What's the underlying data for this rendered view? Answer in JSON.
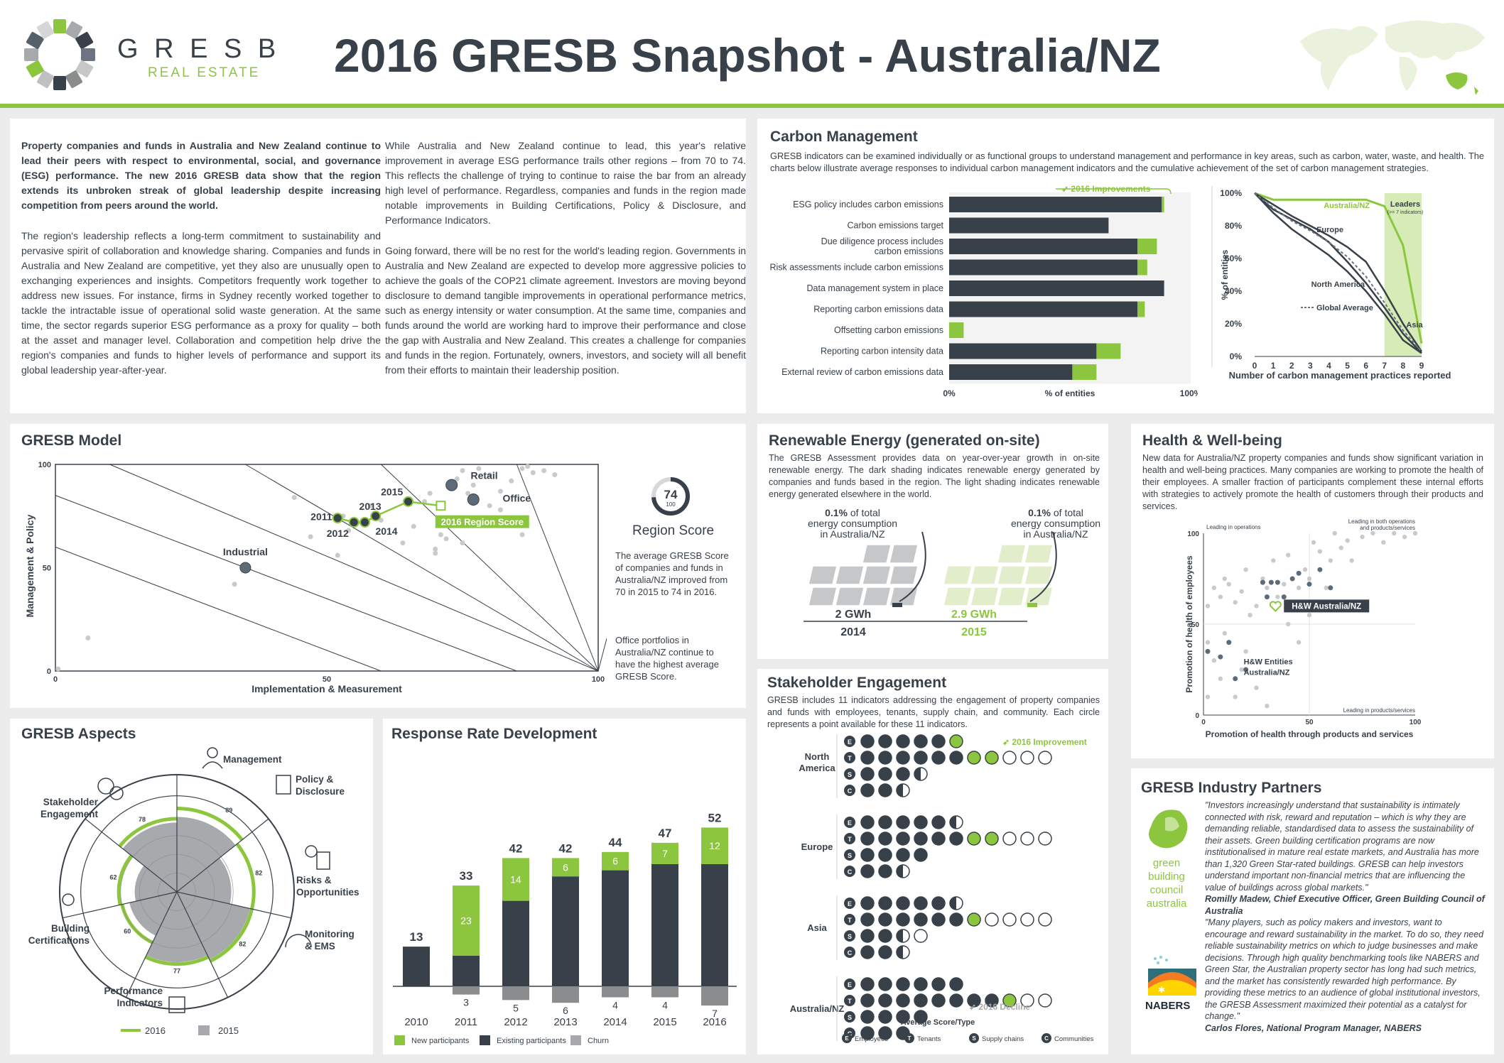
{
  "header": {
    "logo_name": "G R E S B",
    "logo_sub": "REAL ESTATE",
    "title": "2016 GRESB Snapshot - Australia/NZ"
  },
  "intro": {
    "col1_bold": "Property companies and funds in Australia and New Zealand continue to lead their peers with respect to environmental, social, and governance (ESG) performance. The new 2016 GRESB data show that the region extends its unbroken streak of global leadership despite increasing competition from peers around the world.",
    "col1_p2": "The region's leadership reflects a long-term commitment to sustainability and pervasive spirit of collaboration and knowledge sharing. Companies and funds in Australia and New Zealand are competitive, yet they also are unusually open to exchanging experiences and insights. Competitors frequently work together to address new issues. For instance, firms in Sydney recently worked together to tackle the intractable issue of operational solid waste generation. At the same time, the sector regards superior ESG performance as a proxy for quality – both at the asset and manager level. Collaboration and competition help drive the region's companies and funds to higher levels of performance and support its global leadership year-after-year.",
    "col2_p1": "While Australia and New Zealand continue to lead, this year's relative improvement in average ESG performance trails other regions – from 70 to 74. This reflects the challenge of trying to continue to raise the bar from an already high level of performance. Regardless, companies and funds in the region made notable improvements in Building Certifications, Policy & Disclosure, and Performance Indicators.",
    "col2_p2": "Going forward, there will be no rest for the world's leading region. Governments in Australia and New Zealand are expected to develop more aggressive policies to achieve the goals of the COP21 climate agreement. Investors are moving beyond disclosure to demand tangible improvements in operational performance metrics, such as energy intensity or water consumption. At the same time, companies and funds around the world are working hard to improve their performance and close the gap with Australia and New Zealand. This creates a challenge for companies and funds in the region. Fortunately, owners, investors, and society will all benefit from their efforts to maintain their leadership position."
  },
  "carbon": {
    "title": "Carbon Management",
    "desc": "GRESB indicators can be examined individually or as functional groups to understand management and performance in key areas, such as carbon, water, waste, and health. The charts below illustrate average responses to individual carbon management indicators and the cumulative achievement of the set of carbon management strategies.",
    "improvements_label": "2016 Improvements",
    "bars_x_label": "% of entities",
    "bars_x0": "0%",
    "bars_x100": "100%",
    "bars": [
      {
        "label1": "ESG policy includes carbon emissions",
        "label2": "",
        "base": 88,
        "imp": 1
      },
      {
        "label1": "Carbon emissions target",
        "label2": "",
        "base": 66,
        "imp": 0
      },
      {
        "label1": "Due diligence process includes",
        "label2": "carbon emissions",
        "base": 78,
        "imp": 8
      },
      {
        "label1": "Risk assessments include carbon emissions",
        "label2": "",
        "base": 78,
        "imp": 4
      },
      {
        "label1": "Data management system in place",
        "label2": "",
        "base": 89,
        "imp": 0
      },
      {
        "label1": "Reporting carbon emissions data",
        "label2": "",
        "base": 78,
        "imp": 3
      },
      {
        "label1": "Offsetting carbon emissions",
        "label2": "",
        "base": 0,
        "imp": 6
      },
      {
        "label1": "Reporting carbon intensity data",
        "label2": "",
        "base": 61,
        "imp": 10
      },
      {
        "label1": "External review of carbon emissions data",
        "label2": "",
        "base": 51,
        "imp": 10
      }
    ],
    "line": {
      "y_label": "% of entities",
      "x_label": "Number of carbon management practices reported",
      "y_ticks": [
        "0%",
        "20%",
        "40%",
        "60%",
        "80%",
        "100%"
      ],
      "x_ticks": [
        "0",
        "1",
        "2",
        "3",
        "4",
        "5",
        "6",
        "7",
        "8",
        "9"
      ],
      "leaders": "Leaders",
      "leaders_sub": "(>= 7 indicators)",
      "series": [
        {
          "name": "Australia/NZ",
          "color": "#8cc63f",
          "values": [
            100,
            96,
            96,
            96,
            96,
            96,
            96,
            92,
            68,
            8
          ]
        },
        {
          "name": "Europe",
          "color": "#38414a",
          "values": [
            100,
            93,
            86,
            80,
            74,
            67,
            58,
            40,
            20,
            3
          ]
        },
        {
          "name": "North America",
          "color": "#38414a",
          "values": [
            100,
            88,
            78,
            70,
            62,
            52,
            40,
            26,
            10,
            2
          ]
        },
        {
          "name": "Asia",
          "color": "#38414a",
          "values": [
            100,
            90,
            84,
            78,
            70,
            58,
            45,
            30,
            14,
            2
          ]
        },
        {
          "name": "Global Average",
          "color": "#6b7480",
          "values": [
            100,
            91,
            83,
            77,
            70,
            61,
            49,
            33,
            16,
            3
          ]
        }
      ]
    }
  },
  "model": {
    "title": "GRESB Model",
    "y_label": "Management & Policy",
    "x_label": "Implementation & Measurement",
    "ticks_y": [
      "100",
      "50",
      "0"
    ],
    "ticks_x": [
      "0",
      "50",
      "100"
    ],
    "labels": {
      "industrial": "Industrial",
      "retail": "Retail",
      "office": "Office",
      "region": "2016 Region Score",
      "y2011": "2011",
      "y2012": "2012",
      "y2013": "2013",
      "y2014": "2014",
      "y2015": "2015"
    },
    "score": "74",
    "score_of": "100",
    "score_title": "Region Score",
    "score_p1": "The average GRESB Score of companies and funds in Australia/NZ improved from 70 in 2015 to 74 in 2016.",
    "score_p2": "Office portfolios in Australia/NZ continue to have the highest average GRESB Score."
  },
  "renewable": {
    "title": "Renewable Energy (generated on-site)",
    "desc": "The GRESB Assessment provides data on year-over-year growth in on-site renewable energy. The dark shading indicates renewable energy generated by companies and funds based in the region. The light shading indicates renewable energy generated elsewhere in the world.",
    "pct_a": "0.1%",
    "pct_b": "0.1%",
    "pct_text1": " of total",
    "pct_text2": "energy consumption",
    "pct_text3": "in Australia/NZ",
    "gwh_2014": "2 GWh",
    "gwh_2015": "2.9 GWh",
    "y2014": "2014",
    "y2015": "2015"
  },
  "health": {
    "title": "Health & Well-being",
    "desc": "New data for Australia/NZ property companies and funds show significant variation in health and well-being practices. Many companies are working to promote the health of their employees. A smaller fraction of participants complement these internal efforts with strategies to actively promote the health of customers through their products and services.",
    "y_label": "Promotion of health of employees",
    "x_label": "Promotion of health through products and services",
    "q_ops": "Leading in operations",
    "q_both1": "Leading in both operations",
    "q_both2": "and products/services",
    "q_prod": "Leading in products/services",
    "hw": "H&W Australia/NZ",
    "hwe1": "H&W Entities",
    "hwe2": "Australia/NZ",
    "t0": "0",
    "t50": "50",
    "t100": "100"
  },
  "aspects": {
    "title": "GRESB Aspects",
    "labels": {
      "management": "Management",
      "policy1": "Policy &",
      "policy2": "Disclosure",
      "risks1": "Risks &",
      "risks2": "Opportunities",
      "monitoring1": "Monitoring",
      "monitoring2": "& EMS",
      "perf1": "Performance",
      "perf2": "Indicators",
      "building1": "Building",
      "building2": "Certifications",
      "stake1": "Stakeholder",
      "stake2": "Engagement"
    },
    "values": {
      "management": "89",
      "policy": "82",
      "risks": "82",
      "monitoring": "77",
      "perf": "60",
      "building": "62",
      "stake": "78"
    },
    "legend_2016": "2016",
    "legend_2015": "2015"
  },
  "response": {
    "title": "Response Rate Development",
    "chart_data": {
      "type": "bar",
      "categories": [
        "2010",
        "2011",
        "2012",
        "2013",
        "2014",
        "2015",
        "2016"
      ],
      "totals": [
        "13",
        "33",
        "42",
        "42",
        "44",
        "47",
        "52"
      ],
      "new": [
        "",
        "23",
        "14",
        "6",
        "6",
        "7",
        "12"
      ],
      "existing": [
        13,
        10,
        28,
        36,
        38,
        40,
        40
      ],
      "new_values": [
        0,
        23,
        14,
        6,
        6,
        7,
        12
      ],
      "churn": [
        "",
        "3",
        "5",
        "6",
        "4",
        "4",
        "7"
      ],
      "churn_values": [
        0,
        3,
        5,
        6,
        4,
        4,
        7
      ]
    },
    "legend_new": "New participants",
    "legend_existing": "Existing participants",
    "legend_churn": "Churn"
  },
  "stakeholder": {
    "title": "Stakeholder Engagement",
    "desc": "GRESB includes 11 indicators addressing the engagement of property companies and funds with employees, tenants, supply chain, and community. Each circle represents a point available for these 11 indicators.",
    "improvement": "2016 Improvement",
    "decline": "2016 Decline",
    "avg": "Average Score/Type",
    "regions": [
      "North America",
      "Europe",
      "Asia",
      "Australia/NZ"
    ],
    "legend": [
      "Employees",
      "Tenants",
      "Supply chains",
      "Communities"
    ]
  },
  "partners": {
    "title": "GRESB Industry Partners",
    "gbc": [
      "green",
      "building",
      "council",
      "australia"
    ],
    "nabers": "NABERS",
    "q1": "\"Investors increasingly understand that sustainability is intimately connected with risk, reward and reputation – which is why they are demanding reliable, standardised data to assess the sustainability of their assets. Green building certification programs are now institutionalised in mature real estate markets, and Australia has more than 1,320 Green Star-rated buildings. GRESB can help investors understand important non-financial metrics that are influencing the value of buildings across global markets.\"",
    "a1": "Romilly Madew, Chief Executive Officer, Green Building Council of Australia",
    "q2": "\"Many players, such as policy makers and investors, want to encourage and reward sustainability in the market. To do so, they need reliable sustainability metrics on which to judge businesses and make decisions. Through high quality benchmarking tools like NABERS and Green Star, the Australian property sector has long had such metrics, and the market has consistently rewarded high performance. By providing these metrics to an audience of global institutional investors, the GRESB Assessment maximized their potential as a catalyst for change.\"",
    "a2": "Carlos Flores, National Program Manager, NABERS"
  },
  "colors": {
    "green": "#8cc63f",
    "dark": "#38414a",
    "grey": "#a7a9ac",
    "light": "#dfe6c8"
  }
}
